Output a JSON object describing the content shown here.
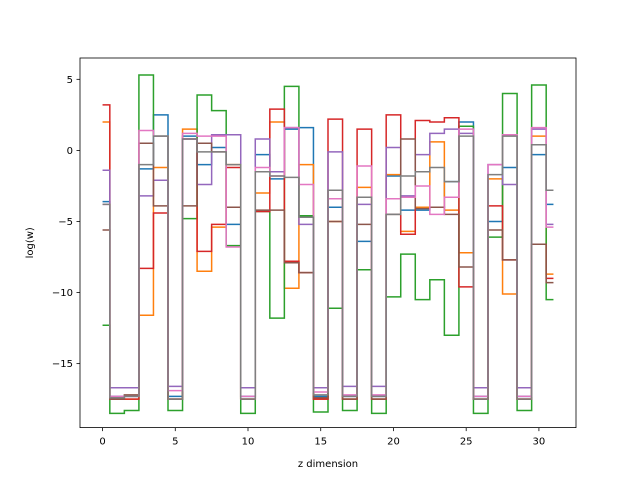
{
  "chart_data": {
    "type": "line",
    "drawstyle": "steps-mid",
    "xlabel": "z dimension",
    "ylabel": "log(w)",
    "xlim": [
      -1.55,
      32.55
    ],
    "ylim": [
      -19.5,
      6.5
    ],
    "xticks": [
      0,
      5,
      10,
      15,
      20,
      25,
      30
    ],
    "yticks": [
      5,
      0,
      -5,
      -10,
      -15
    ],
    "grid": false,
    "legend": "none",
    "x": [
      0,
      1,
      2,
      3,
      4,
      5,
      6,
      7,
      8,
      9,
      10,
      11,
      12,
      13,
      14,
      15,
      16,
      17,
      18,
      19,
      20,
      21,
      22,
      23,
      24,
      25,
      26,
      27,
      28,
      29,
      30,
      31
    ],
    "series": [
      {
        "color": "#1f77b4",
        "values": [
          -3.6,
          -17.3,
          -17.3,
          -1.3,
          2.5,
          -17.3,
          1.0,
          -1.0,
          0.2,
          -5.2,
          -17.3,
          -0.3,
          -2.0,
          1.5,
          1.6,
          -17.3,
          -4.0,
          -17.3,
          -6.4,
          -17.3,
          -1.8,
          -4.2,
          -4.2,
          -4.0,
          -2.2,
          2.0,
          -17.3,
          -5.0,
          -1.2,
          -17.3,
          -0.3,
          -3.8
        ]
      },
      {
        "color": "#ff7f0e",
        "values": [
          2.0,
          -17.5,
          -17.5,
          -11.6,
          -1.2,
          -17.5,
          1.5,
          -8.5,
          -5.4,
          -1.0,
          -17.5,
          -3.0,
          2.0,
          -9.7,
          -1.0,
          -17.5,
          -5.0,
          -17.5,
          -2.6,
          -17.5,
          -1.7,
          -5.7,
          -4.0,
          0.6,
          -4.2,
          -7.2,
          -17.5,
          -2.0,
          -10.1,
          -17.5,
          1.0,
          -8.7
        ]
      },
      {
        "color": "#2ca02c",
        "values": [
          -12.3,
          -18.5,
          -18.3,
          5.3,
          1.0,
          -18.3,
          -4.8,
          3.9,
          2.8,
          -6.7,
          -18.5,
          -4.3,
          -11.8,
          4.5,
          -4.6,
          -18.4,
          -11.1,
          -18.3,
          -8.4,
          -18.5,
          -10.3,
          -7.3,
          -10.5,
          -9.1,
          -13.0,
          1.7,
          -18.5,
          -6.1,
          4.0,
          -18.3,
          4.6,
          -10.5
        ]
      },
      {
        "color": "#d62728",
        "values": [
          3.2,
          -17.5,
          -17.5,
          -8.3,
          -4.4,
          -17.5,
          0.8,
          -7.1,
          -5.2,
          -1.2,
          -17.5,
          -4.3,
          2.9,
          -7.8,
          -8.6,
          -17.5,
          2.2,
          -17.5,
          1.5,
          -17.5,
          2.5,
          -5.9,
          2.1,
          2.0,
          2.3,
          -9.6,
          -17.5,
          -3.9,
          -7.7,
          -17.5,
          -6.6,
          -9.0
        ]
      },
      {
        "color": "#9467bd",
        "values": [
          -1.4,
          -16.7,
          -16.7,
          -3.2,
          -2.1,
          -16.6,
          0.8,
          -2.4,
          1.1,
          1.1,
          -16.7,
          0.8,
          -1.5,
          1.6,
          -5.2,
          -16.7,
          -0.1,
          -16.6,
          -3.8,
          -16.6,
          0.2,
          -3.2,
          -0.3,
          1.2,
          1.5,
          1.2,
          -16.7,
          -1.0,
          -2.4,
          -16.7,
          1.5,
          -5.2
        ]
      },
      {
        "color": "#8c564b",
        "values": [
          -5.6,
          -17.5,
          -17.2,
          0.5,
          -3.9,
          -17.5,
          -3.9,
          0.5,
          -0.1,
          -4.0,
          -17.5,
          -4.2,
          -4.2,
          -7.9,
          -8.6,
          -17.4,
          -5.0,
          -17.5,
          -5.2,
          -17.5,
          -4.5,
          0.8,
          -4.1,
          -4.0,
          -4.5,
          -8.2,
          -17.5,
          -5.6,
          -7.7,
          -17.5,
          -6.6,
          -9.3
        ]
      },
      {
        "color": "#e377c2",
        "values": [
          -3.8,
          -17.3,
          -17.3,
          1.4,
          1.0,
          -16.9,
          1.2,
          1.0,
          1.0,
          -6.8,
          -17.3,
          -1.2,
          -1.8,
          1.6,
          -2.4,
          -17.0,
          -3.4,
          -17.2,
          -1.1,
          -17.2,
          -3.4,
          -3.3,
          -2.5,
          -4.5,
          -3.3,
          1.5,
          -17.3,
          -1.0,
          1.1,
          -17.3,
          1.6,
          -5.4
        ]
      },
      {
        "color": "#7f7f7f",
        "values": [
          -3.8,
          -17.4,
          -17.3,
          -1.0,
          1.0,
          -17.5,
          0.8,
          -0.1,
          -0.1,
          -1.0,
          -17.5,
          -1.5,
          -1.8,
          -1.9,
          -4.7,
          -17.2,
          -2.8,
          -17.3,
          -3.3,
          -17.3,
          -4.5,
          -1.8,
          -1.5,
          -1.2,
          -2.2,
          1.0,
          -17.5,
          -1.7,
          1.0,
          -17.5,
          0.4,
          -2.8
        ]
      }
    ]
  }
}
